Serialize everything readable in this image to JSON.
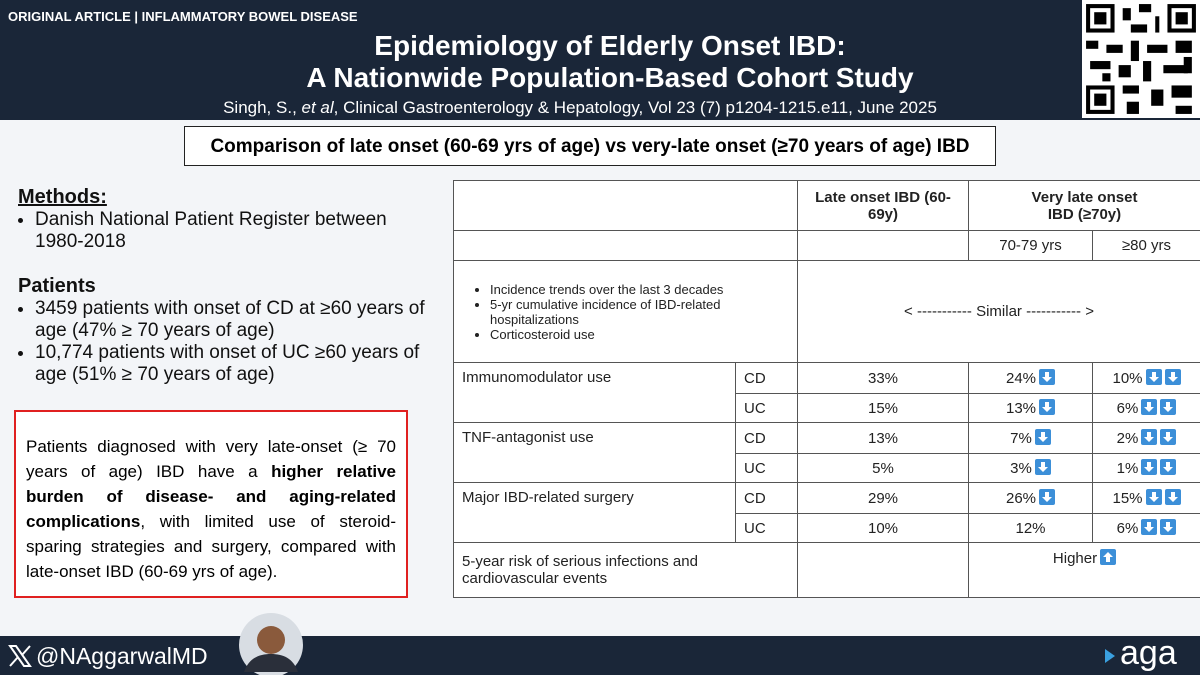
{
  "header": {
    "tag": "ORIGINAL ARTICLE | INFLAMMATORY BOWEL DISEASE",
    "title": [
      "Epidemiology of Elderly Onset IBD:",
      "A Nationwide Population-Based Cohort Study"
    ],
    "citation": {
      "authors": "Singh, S., ",
      "etal": "et al",
      "rest": ", Clinical Gastroenterology & Hepatology, Vol 23 (7) p1204-1215.e11, June 2025"
    }
  },
  "subtitle": "Comparison of late onset (60-69 yrs of age) vs very-late onset (≥70 years of age) IBD",
  "methods": {
    "heading": "Methods:",
    "items": [
      "Danish National Patient Register between 1980-2018"
    ]
  },
  "patients": {
    "heading": "Patients",
    "items": [
      "3459 patients with onset of CD at ≥60 years of age (47% ≥ 70 years of age)",
      "10,774 patients with onset of UC ≥60 years of age (51% ≥ 70 years of age)"
    ]
  },
  "conclusion": [
    {
      "text": "Patients diagnosed with very late-onset (≥ 70 years of age) IBD have a ",
      "bold": false
    },
    {
      "text": "higher relative burden of disease- and aging-related complications",
      "bold": true
    },
    {
      "text": ", with limited use of steroid-sparing strategies and surgery, compared with late-onset IBD (60-69 yrs of age).",
      "bold": false
    }
  ],
  "table": {
    "header": {
      "late": "Late onset IBD (60-69y)",
      "very_late": "Very late onset IBD (≥70y)",
      "sub": [
        "70-79 yrs",
        "≥80 yrs"
      ]
    },
    "similar": {
      "items": [
        "Incidence trends over the last 3 decades",
        "5-yr cumulative incidence of IBD-related hospitalizations",
        "Corticosteroid use"
      ],
      "label": "< ----------- Similar ----------- >"
    },
    "groups": [
      {
        "label": "Immunomodulator use",
        "rows": [
          {
            "type": "CD",
            "late": "33%",
            "age70": {
              "text": "24%",
              "down": 1
            },
            "age80": {
              "text": "10%",
              "down": 2
            }
          },
          {
            "type": "UC",
            "late": "15%",
            "age70": {
              "text": "13%",
              "down": 1
            },
            "age80": {
              "text": "6%",
              "down": 2
            }
          }
        ]
      },
      {
        "label": "TNF-antagonist use",
        "rows": [
          {
            "type": "CD",
            "late": "13%",
            "age70": {
              "text": "7%",
              "down": 1
            },
            "age80": {
              "text": "2%",
              "down": 2
            }
          },
          {
            "type": "UC",
            "late": "5%",
            "age70": {
              "text": "3%",
              "down": 1
            },
            "age80": {
              "text": "1%",
              "down": 2
            }
          }
        ]
      },
      {
        "label": "Major IBD-related surgery",
        "rows": [
          {
            "type": "CD",
            "late": "29%",
            "age70": {
              "text": "26%",
              "down": 1
            },
            "age80": {
              "text": "15%",
              "down": 2
            }
          },
          {
            "type": "UC",
            "late": "10%",
            "age70": {
              "text": "12%",
              "down": 0
            },
            "age80": {
              "text": "6%",
              "down": 2
            }
          }
        ]
      }
    ],
    "last": {
      "label": "5-year risk of serious infections and cardiovascular events",
      "value": "Higher",
      "up": 1
    }
  },
  "footer": {
    "handle": "@NAggarwalMD",
    "logo": "aga"
  }
}
